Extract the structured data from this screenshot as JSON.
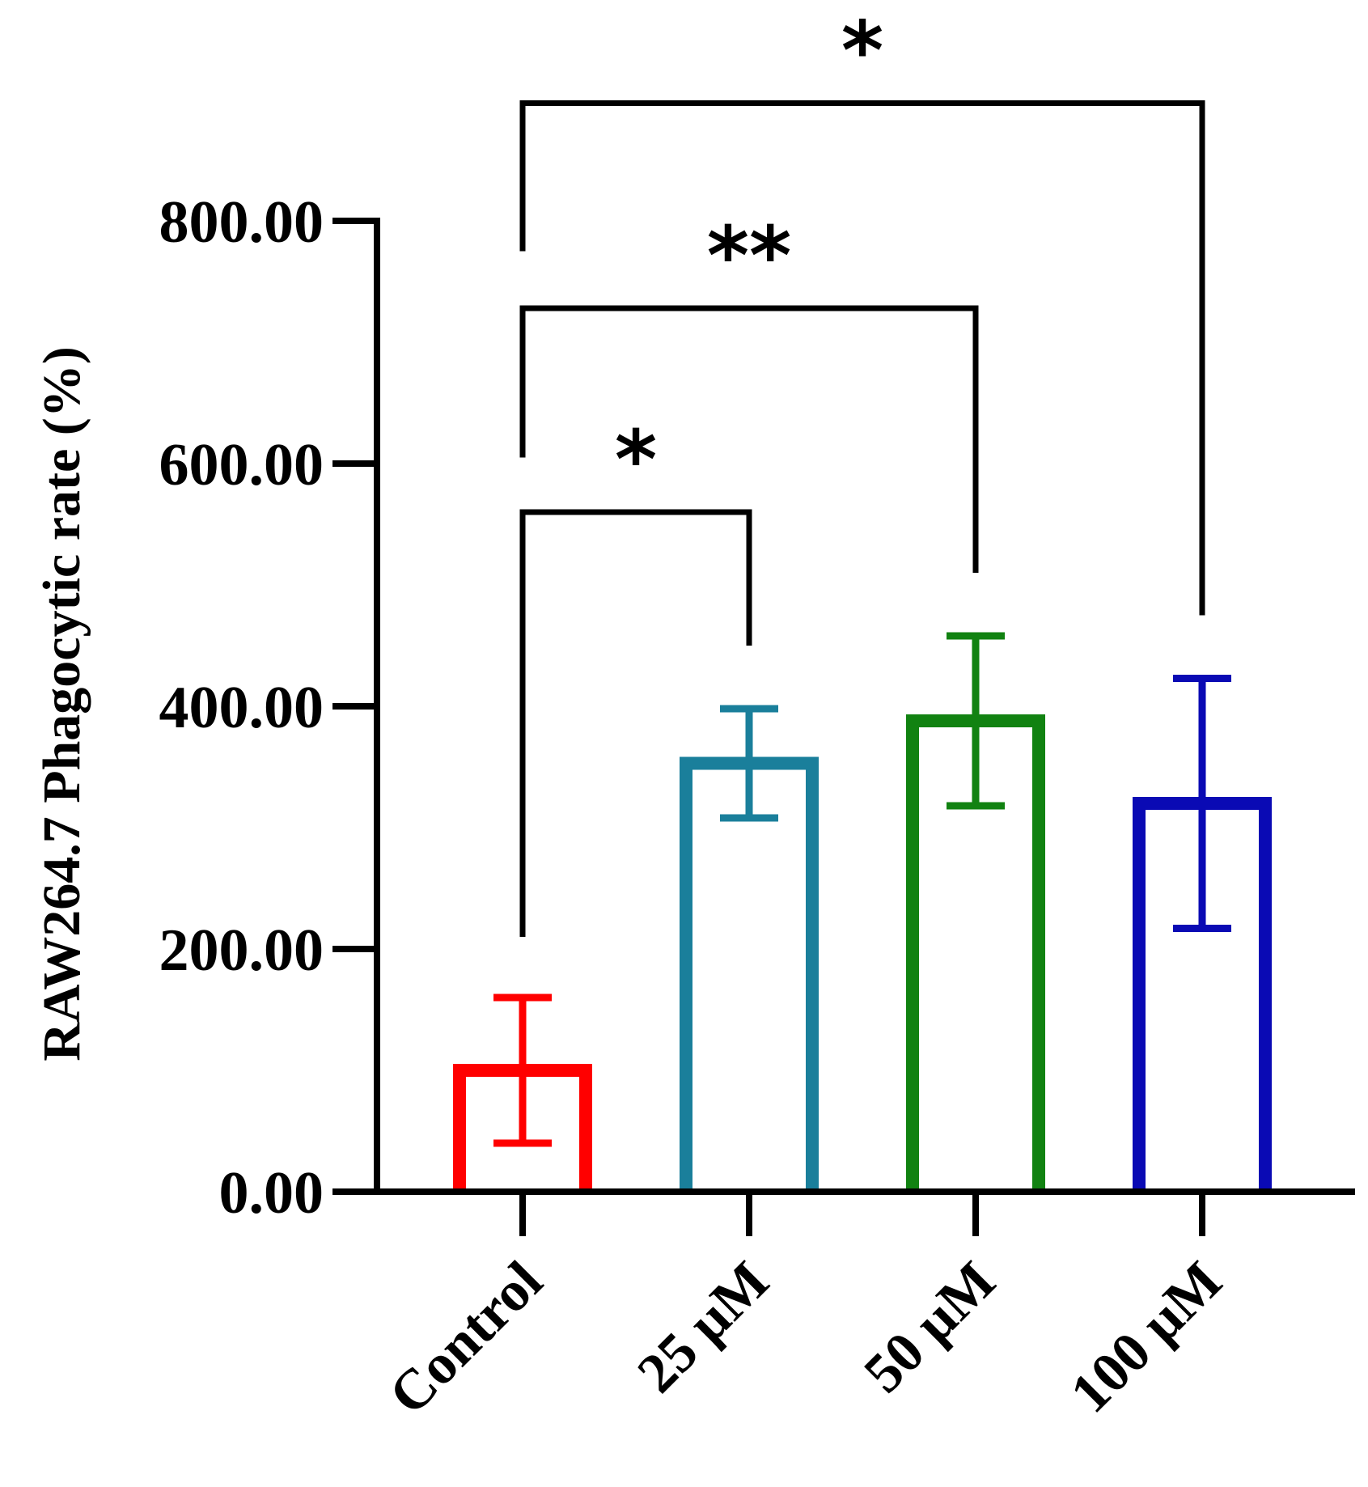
{
  "chart_data": {
    "type": "bar",
    "title": "",
    "xlabel": "",
    "ylabel": "RAW264.7 Phagocytic rate (%)",
    "ylim": [
      0,
      800
    ],
    "yticks": [
      0,
      200,
      400,
      600,
      800
    ],
    "ytick_labels": [
      "0.00",
      "200.00",
      "400.00",
      "600.00",
      "800.00"
    ],
    "grid": false,
    "legend": "none",
    "bar_style": "open",
    "categories": [
      "Control",
      "25 µM",
      "50 µM",
      "100 µM"
    ],
    "values": [
      100,
      353,
      388,
      320
    ],
    "errors": [
      60,
      45,
      70,
      103
    ],
    "colors": [
      "#ff0000",
      "#1a7f9b",
      "#118211",
      "#0a0ab4"
    ],
    "significance": [
      {
        "from": 0,
        "to": 1,
        "label": "*",
        "bracket_y": 560,
        "left_end": 210,
        "right_end": 450
      },
      {
        "from": 0,
        "to": 2,
        "label": "**",
        "bracket_y": 728,
        "left_end": 605,
        "right_end": 510
      },
      {
        "from": 0,
        "to": 3,
        "label": "*",
        "bracket_y": 897,
        "left_end": 775,
        "right_end": 475
      }
    ]
  }
}
